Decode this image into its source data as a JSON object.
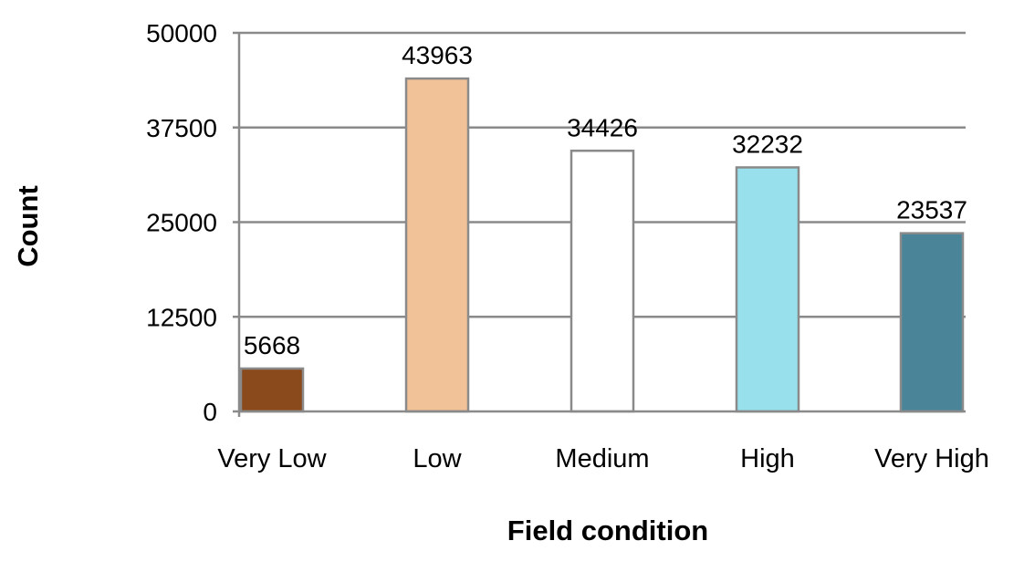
{
  "chart_data": {
    "type": "bar",
    "categories": [
      "Very Low",
      "Low",
      "Medium",
      "High",
      "Very High"
    ],
    "values": [
      5668,
      43963,
      34426,
      32232,
      23537
    ],
    "colors": [
      "#8B4A1C",
      "#F1C197",
      "#FFFFFF",
      "#98E1EC",
      "#4A8499"
    ],
    "bar_border_color": "#8A8A8A",
    "grid_color": "#8A8A8A",
    "xlabel": "Field condition",
    "ylabel": "Count",
    "ylim": [
      0,
      50000
    ],
    "yticks": [
      0,
      12500,
      25000,
      37500,
      50000
    ],
    "grid": true,
    "data_labels": true
  }
}
